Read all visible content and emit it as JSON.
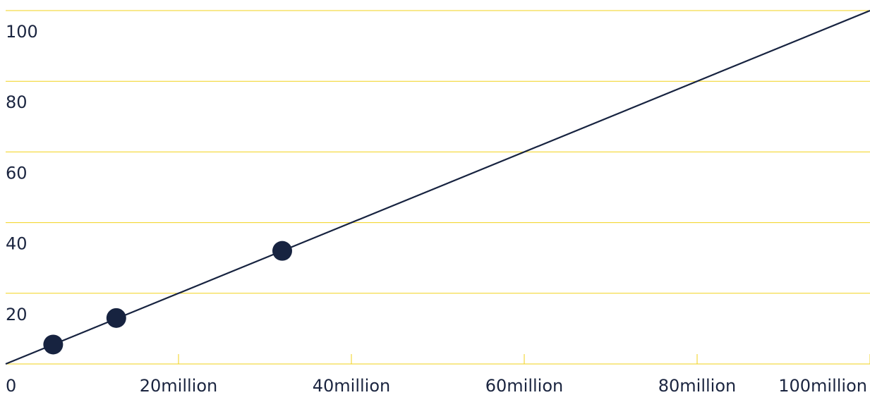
{
  "chart_data": {
    "type": "scatter",
    "title": "",
    "xlabel": "",
    "ylabel": "",
    "xlim": [
      0,
      100000000
    ],
    "ylim": [
      0,
      100
    ],
    "x_ticks": [
      {
        "value": 0,
        "label": "0"
      },
      {
        "value": 20000000,
        "label": "20million"
      },
      {
        "value": 40000000,
        "label": "40million"
      },
      {
        "value": 60000000,
        "label": "60million"
      },
      {
        "value": 80000000,
        "label": "80million"
      },
      {
        "value": 100000000,
        "label": "100million"
      }
    ],
    "y_ticks": [
      {
        "value": 20,
        "label": "20"
      },
      {
        "value": 40,
        "label": "40"
      },
      {
        "value": 60,
        "label": "60"
      },
      {
        "value": 80,
        "label": "80"
      },
      {
        "value": 100,
        "label": "100"
      }
    ],
    "grid": "horizontal",
    "series": [
      {
        "type": "scatter",
        "points": [
          {
            "x": 5500000,
            "y": 5.5
          },
          {
            "x": 12800000,
            "y": 13
          },
          {
            "x": 32000000,
            "y": 32
          }
        ]
      },
      {
        "type": "line",
        "points": [
          {
            "x": 0,
            "y": 0
          },
          {
            "x": 100000000,
            "y": 100
          }
        ]
      }
    ],
    "colors": {
      "line": "#172340",
      "points": "#172340",
      "grid": "#f2d21b",
      "text": "#1b2540"
    }
  }
}
